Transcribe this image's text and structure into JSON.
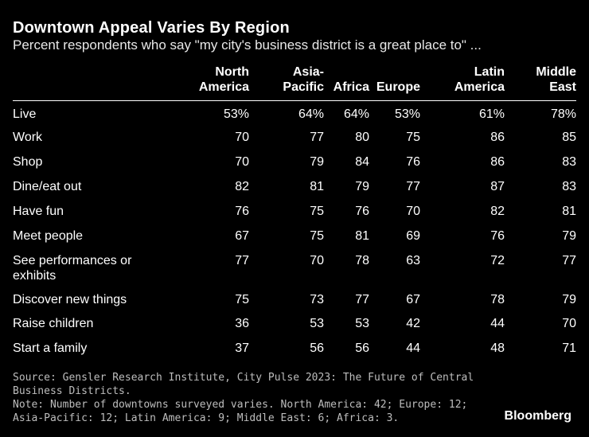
{
  "header": {
    "title": "Downtown Appeal Varies By Region",
    "subtitle": "Percent respondents who say \"my city's business district is a great place to\" ..."
  },
  "chart_data": {
    "type": "table",
    "title": "Downtown Appeal Varies By Region",
    "subtitle": "Percent respondents who say \"my city's business district is a great place to\" ...",
    "columns": [
      {
        "lines": [
          "North",
          "America"
        ]
      },
      {
        "lines": [
          "Asia-",
          "Pacific"
        ]
      },
      {
        "lines": [
          "",
          "Africa"
        ]
      },
      {
        "lines": [
          "",
          "Europe"
        ]
      },
      {
        "lines": [
          "Latin",
          "America"
        ]
      },
      {
        "lines": [
          "Middle",
          "East"
        ]
      }
    ],
    "rows": [
      {
        "label": [
          "Live"
        ],
        "values": [
          "53%",
          "64%",
          "64%",
          "53%",
          "61%",
          "78%"
        ]
      },
      {
        "label": [
          "Work"
        ],
        "values": [
          "70",
          "77",
          "80",
          "75",
          "86",
          "85"
        ]
      },
      {
        "label": [
          "Shop"
        ],
        "values": [
          "70",
          "79",
          "84",
          "76",
          "86",
          "83"
        ]
      },
      {
        "label": [
          "Dine/eat out"
        ],
        "values": [
          "82",
          "81",
          "79",
          "77",
          "87",
          "83"
        ]
      },
      {
        "label": [
          "Have fun"
        ],
        "values": [
          "76",
          "75",
          "76",
          "70",
          "82",
          "81"
        ]
      },
      {
        "label": [
          "Meet people"
        ],
        "values": [
          "67",
          "75",
          "81",
          "69",
          "76",
          "79"
        ]
      },
      {
        "label": [
          "See performances or",
          "exhibits"
        ],
        "values": [
          "77",
          "70",
          "78",
          "63",
          "72",
          "77"
        ]
      },
      {
        "label": [
          "Discover new things"
        ],
        "values": [
          "75",
          "73",
          "77",
          "67",
          "78",
          "79"
        ]
      },
      {
        "label": [
          "Raise children"
        ],
        "values": [
          "36",
          "53",
          "53",
          "42",
          "44",
          "70"
        ]
      },
      {
        "label": [
          "Start a family"
        ],
        "values": [
          "37",
          "56",
          "56",
          "44",
          "48",
          "71"
        ]
      }
    ]
  },
  "footer": {
    "lines": [
      "Source: Gensler Research Institute, City Pulse 2023: The Future of Central",
      "Business Districts.",
      "Note: Number of downtowns surveyed varies. North America: 42; Europe: 12;",
      "Asia-Pacific: 12; Latin America: 9; Middle East: 6; Africa: 3."
    ]
  },
  "brand": "Bloomberg"
}
